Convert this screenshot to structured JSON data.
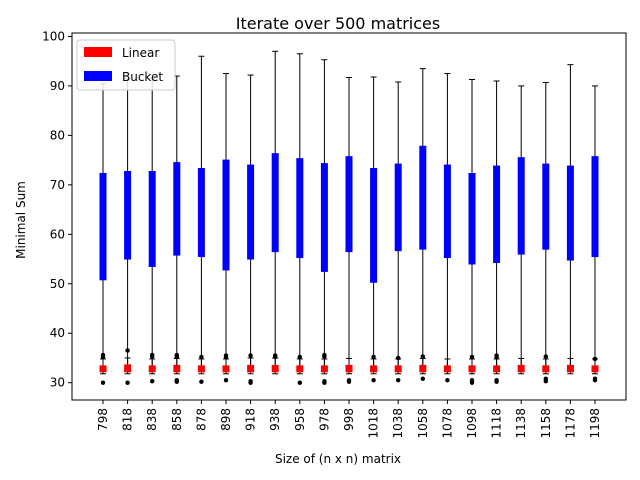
{
  "chart_data": {
    "type": "box",
    "title": "Iterate over 500 matrices",
    "xlabel": "Size of (n x n) matrix",
    "ylabel": "Minimal Sum",
    "ylim": [
      26.5,
      100.7
    ],
    "yticks": [
      30,
      40,
      50,
      60,
      70,
      80,
      90,
      100
    ],
    "categories": [
      "798",
      "818",
      "838",
      "858",
      "878",
      "898",
      "918",
      "938",
      "958",
      "978",
      "998",
      "1018",
      "1038",
      "1058",
      "1078",
      "1098",
      "1118",
      "1138",
      "1158",
      "1178",
      "1198"
    ],
    "legend": {
      "placement": "upper-left"
    },
    "series": [
      {
        "name": "Linear",
        "color": "#ff0000",
        "boxes": [
          {
            "whislo": 31.8,
            "q1": 32.2,
            "med": 32.8,
            "q3": 33.4,
            "whishi": 34.8,
            "outliers": [
              30.0,
              35.2,
              35.6
            ]
          },
          {
            "whislo": 31.8,
            "q1": 32.2,
            "med": 32.9,
            "q3": 33.6,
            "whishi": 35.0,
            "outliers": [
              30.0,
              36.5
            ]
          },
          {
            "whislo": 31.8,
            "q1": 32.2,
            "med": 32.8,
            "q3": 33.4,
            "whishi": 34.8,
            "outliers": [
              30.3,
              35.3,
              35.6
            ]
          },
          {
            "whislo": 31.8,
            "q1": 32.2,
            "med": 32.9,
            "q3": 33.5,
            "whishi": 34.9,
            "outliers": [
              30.2,
              30.5,
              35.2,
              35.6
            ]
          },
          {
            "whislo": 31.8,
            "q1": 32.2,
            "med": 32.8,
            "q3": 33.4,
            "whishi": 34.8,
            "outliers": [
              30.2,
              35.2
            ]
          },
          {
            "whislo": 31.8,
            "q1": 32.2,
            "med": 32.8,
            "q3": 33.4,
            "whishi": 34.8,
            "outliers": [
              30.5,
              35.2,
              35.5
            ]
          },
          {
            "whislo": 31.8,
            "q1": 32.2,
            "med": 32.9,
            "q3": 33.5,
            "whishi": 35.0,
            "outliers": [
              30.0,
              30.3,
              35.5
            ]
          },
          {
            "whislo": 31.8,
            "q1": 32.2,
            "med": 32.9,
            "q3": 33.5,
            "whishi": 35.0,
            "outliers": [
              35.2,
              35.5
            ]
          },
          {
            "whislo": 31.8,
            "q1": 32.2,
            "med": 32.8,
            "q3": 33.4,
            "whishi": 34.8,
            "outliers": [
              30.0,
              35.2
            ]
          },
          {
            "whislo": 31.8,
            "q1": 32.2,
            "med": 32.8,
            "q3": 33.4,
            "whishi": 34.8,
            "outliers": [
              30.0,
              30.3,
              35.3,
              35.6
            ]
          },
          {
            "whislo": 31.8,
            "q1": 32.2,
            "med": 32.9,
            "q3": 33.5,
            "whishi": 34.9,
            "outliers": [
              30.2,
              30.5
            ]
          },
          {
            "whislo": 31.8,
            "q1": 32.2,
            "med": 32.8,
            "q3": 33.4,
            "whishi": 34.8,
            "outliers": [
              30.5,
              35.2
            ]
          },
          {
            "whislo": 31.8,
            "q1": 32.2,
            "med": 32.8,
            "q3": 33.4,
            "whishi": 34.8,
            "outliers": [
              30.5,
              35.0
            ]
          },
          {
            "whislo": 31.8,
            "q1": 32.2,
            "med": 32.9,
            "q3": 33.5,
            "whishi": 34.9,
            "outliers": [
              30.8,
              35.3
            ]
          },
          {
            "whislo": 31.8,
            "q1": 32.2,
            "med": 32.8,
            "q3": 33.4,
            "whishi": 34.8,
            "outliers": [
              30.5
            ]
          },
          {
            "whislo": 31.8,
            "q1": 32.2,
            "med": 32.8,
            "q3": 33.4,
            "whishi": 34.8,
            "outliers": [
              30.0,
              30.5,
              35.2
            ]
          },
          {
            "whislo": 31.8,
            "q1": 32.2,
            "med": 32.8,
            "q3": 33.4,
            "whishi": 34.8,
            "outliers": [
              30.2,
              30.5,
              35.2,
              35.5
            ]
          },
          {
            "whislo": 31.8,
            "q1": 32.2,
            "med": 32.9,
            "q3": 33.5,
            "whishi": 34.9,
            "outliers": []
          },
          {
            "whislo": 31.8,
            "q1": 32.2,
            "med": 32.8,
            "q3": 33.4,
            "whishi": 34.8,
            "outliers": [
              30.3,
              30.8,
              35.3
            ]
          },
          {
            "whislo": 31.8,
            "q1": 32.2,
            "med": 32.9,
            "q3": 33.5,
            "whishi": 34.9,
            "outliers": []
          },
          {
            "whislo": 31.8,
            "q1": 32.2,
            "med": 32.8,
            "q3": 33.4,
            "whishi": 34.8,
            "outliers": [
              30.5,
              30.8,
              34.8
            ]
          }
        ]
      },
      {
        "name": "Bucket",
        "color": "#0000ff",
        "boxes": [
          {
            "whislo": 32.5,
            "q1": 50.8,
            "med": 60.5,
            "q3": 72.3,
            "whishi": 90.5
          },
          {
            "whislo": 32.5,
            "q1": 55.0,
            "med": 66.0,
            "q3": 72.7,
            "whishi": 91.5
          },
          {
            "whislo": 32.5,
            "q1": 53.5,
            "med": 62.0,
            "q3": 72.7,
            "whishi": 91.5
          },
          {
            "whislo": 32.5,
            "q1": 55.8,
            "med": 66.5,
            "q3": 74.5,
            "whishi": 92.0
          },
          {
            "whislo": 32.5,
            "q1": 55.5,
            "med": 66.0,
            "q3": 73.3,
            "whishi": 96.0
          },
          {
            "whislo": 32.5,
            "q1": 52.8,
            "med": 62.0,
            "q3": 75.0,
            "whishi": 92.5
          },
          {
            "whislo": 32.5,
            "q1": 55.0,
            "med": 64.5,
            "q3": 74.0,
            "whishi": 92.2
          },
          {
            "whislo": 32.5,
            "q1": 56.5,
            "med": 67.0,
            "q3": 76.3,
            "whishi": 97.0
          },
          {
            "whislo": 32.5,
            "q1": 55.3,
            "med": 66.5,
            "q3": 75.3,
            "whishi": 96.5
          },
          {
            "whislo": 32.5,
            "q1": 52.5,
            "med": 66.0,
            "q3": 74.3,
            "whishi": 95.3
          },
          {
            "whislo": 32.5,
            "q1": 56.5,
            "med": 66.5,
            "q3": 75.7,
            "whishi": 91.7
          },
          {
            "whislo": 32.5,
            "q1": 50.3,
            "med": 62.0,
            "q3": 73.3,
            "whishi": 91.8
          },
          {
            "whislo": 32.5,
            "q1": 56.7,
            "med": 66.0,
            "q3": 74.2,
            "whishi": 90.8
          },
          {
            "whislo": 32.5,
            "q1": 57.0,
            "med": 68.5,
            "q3": 77.8,
            "whishi": 93.5
          },
          {
            "whislo": 32.5,
            "q1": 55.3,
            "med": 64.5,
            "q3": 74.0,
            "whishi": 92.5
          },
          {
            "whislo": 32.5,
            "q1": 54.0,
            "med": 62.0,
            "q3": 72.3,
            "whishi": 91.3
          },
          {
            "whislo": 32.5,
            "q1": 54.3,
            "med": 63.5,
            "q3": 73.8,
            "whishi": 91.0
          },
          {
            "whislo": 32.5,
            "q1": 56.0,
            "med": 67.0,
            "q3": 75.5,
            "whishi": 90.0
          },
          {
            "whislo": 32.5,
            "q1": 57.0,
            "med": 66.0,
            "q3": 74.2,
            "whishi": 90.7
          },
          {
            "whislo": 32.5,
            "q1": 54.8,
            "med": 63.5,
            "q3": 73.8,
            "whishi": 94.3
          },
          {
            "whislo": 32.5,
            "q1": 55.5,
            "med": 64.0,
            "q3": 75.7,
            "whishi": 90.0
          }
        ]
      }
    ]
  }
}
